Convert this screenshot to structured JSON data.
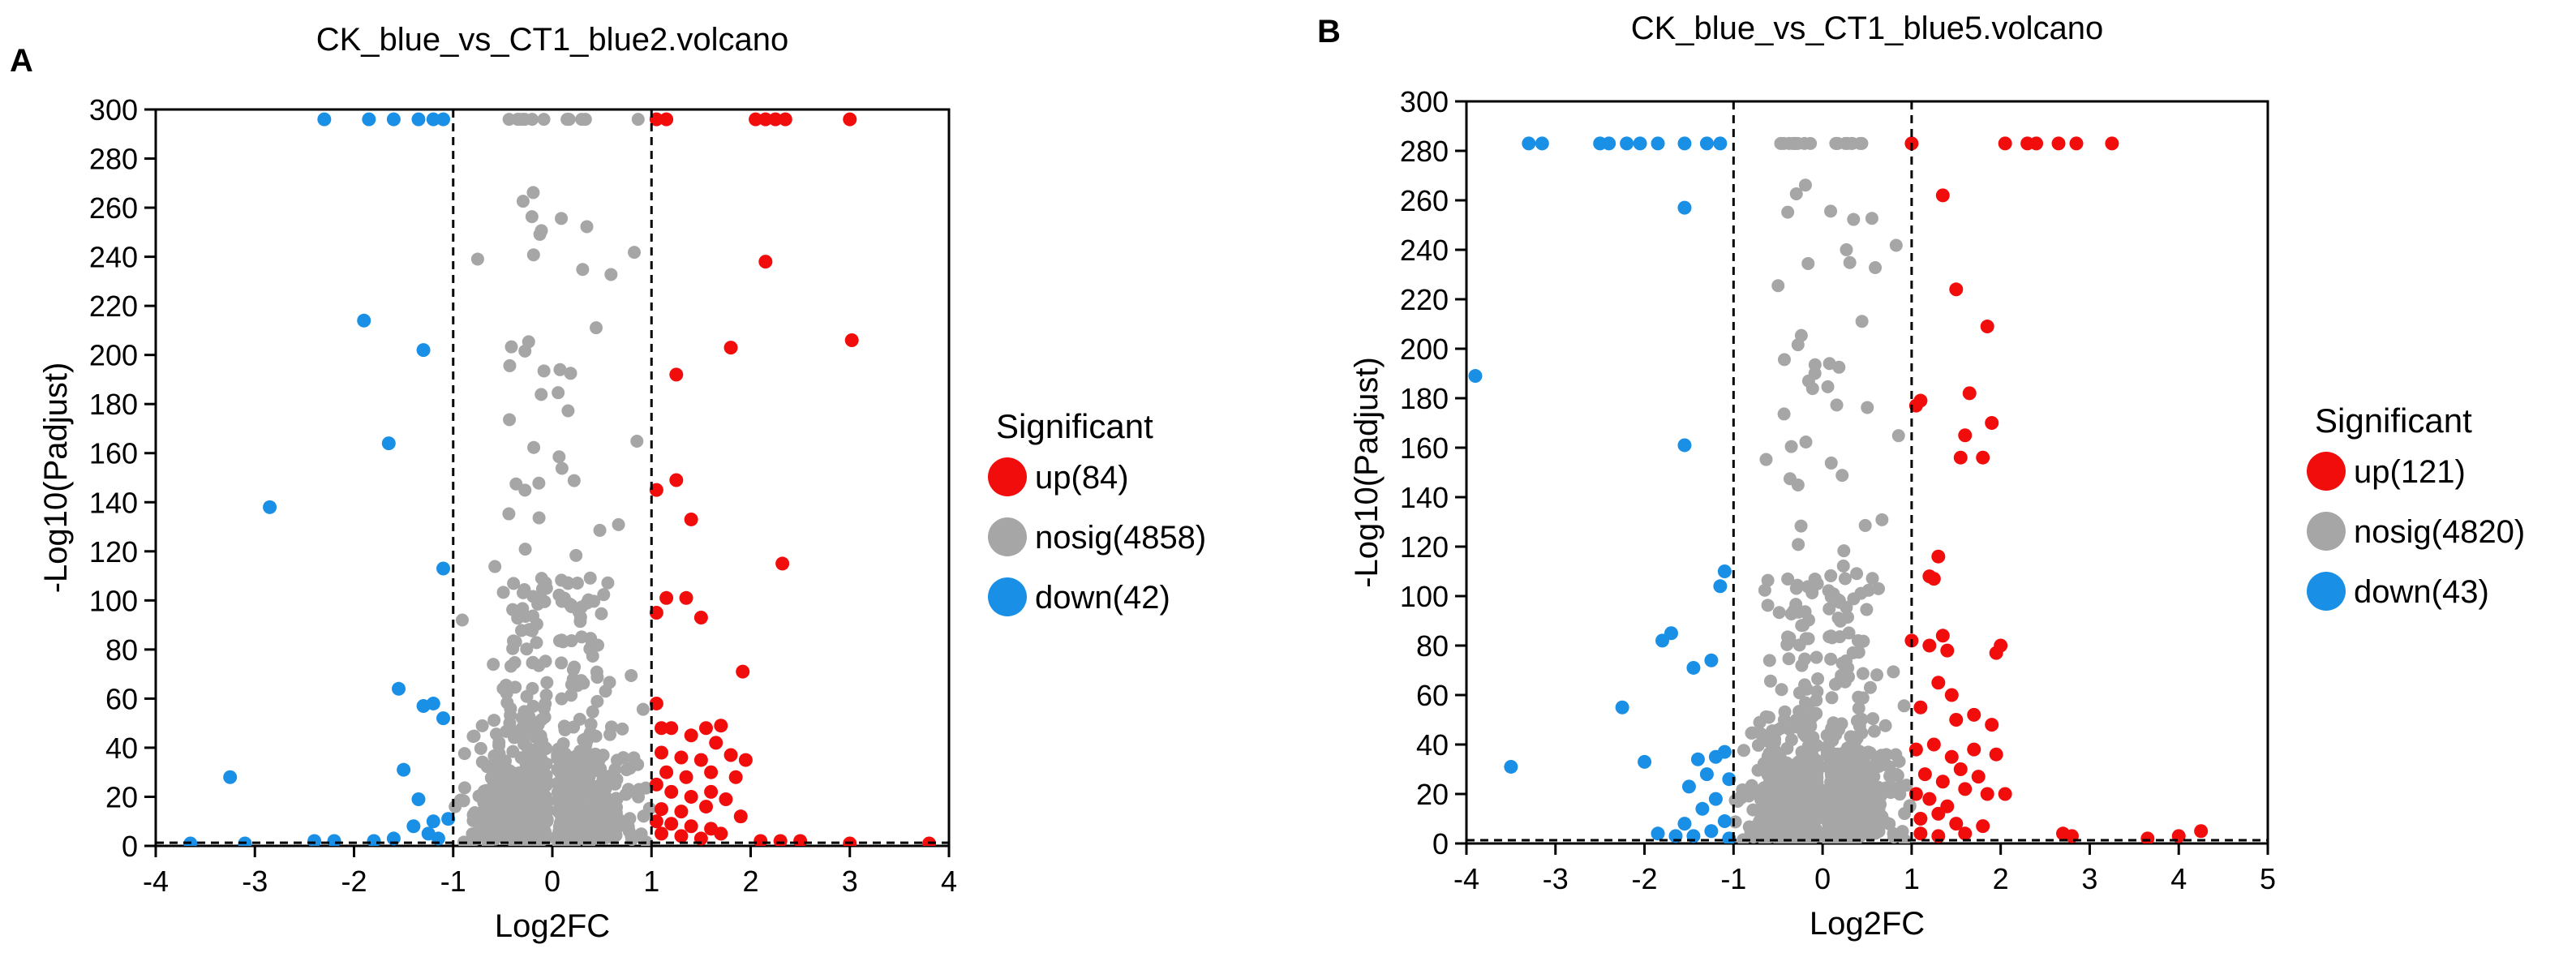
{
  "chart_data": [
    {
      "panel": "A",
      "type": "scatter",
      "title": "CK_blue_vs_CT1_blue2.volcano",
      "xlabel": "Log2FC",
      "ylabel": "-Log10(Padjust)",
      "xlim": [
        -4,
        4
      ],
      "ylim": [
        0,
        300
      ],
      "xticks": [
        "-4",
        "-3",
        "-2",
        "-1",
        "0",
        "1",
        "2",
        "3",
        "4"
      ],
      "yticks": [
        "0",
        "20",
        "40",
        "60",
        "80",
        "100",
        "120",
        "140",
        "160",
        "180",
        "200",
        "220",
        "240",
        "260",
        "280",
        "300"
      ],
      "thresholds": {
        "log2fc": [
          -1,
          1
        ],
        "neglog10p": 1.3
      },
      "legend": {
        "title": "Significant",
        "entries": [
          {
            "label": "up(84)",
            "color": "#f20d0d"
          },
          {
            "label": "nosig(4858)",
            "color": "#a6a6a6"
          },
          {
            "label": "down(42)",
            "color": "#1a8fe6"
          }
        ]
      },
      "series": [
        {
          "name": "up",
          "color": "#f20d0d",
          "points": [
            [
              1.05,
              296
            ],
            [
              1.15,
              296
            ],
            [
              2.05,
              296
            ],
            [
              2.15,
              296
            ],
            [
              2.25,
              296
            ],
            [
              2.35,
              296
            ],
            [
              3.0,
              296
            ],
            [
              2.15,
              238
            ],
            [
              3.02,
              206
            ],
            [
              1.8,
              203
            ],
            [
              1.25,
              192
            ],
            [
              2.32,
              115
            ],
            [
              1.25,
              149
            ],
            [
              1.05,
              145
            ],
            [
              1.4,
              133
            ],
            [
              1.05,
              95
            ],
            [
              1.15,
              101
            ],
            [
              1.35,
              101
            ],
            [
              1.5,
              93
            ],
            [
              1.92,
              71
            ],
            [
              1.05,
              58
            ],
            [
              1.1,
              48
            ],
            [
              1.2,
              48
            ],
            [
              1.4,
              45
            ],
            [
              1.55,
              48
            ],
            [
              1.7,
              49
            ],
            [
              1.65,
              42
            ],
            [
              1.1,
              38
            ],
            [
              1.3,
              36
            ],
            [
              1.5,
              35
            ],
            [
              1.8,
              37
            ],
            [
              1.95,
              35
            ],
            [
              1.15,
              30
            ],
            [
              1.35,
              28
            ],
            [
              1.6,
              30
            ],
            [
              1.85,
              28
            ],
            [
              1.05,
              25
            ],
            [
              1.2,
              22
            ],
            [
              1.4,
              20
            ],
            [
              1.6,
              22
            ],
            [
              1.75,
              19
            ],
            [
              1.1,
              15
            ],
            [
              1.3,
              14
            ],
            [
              1.55,
              16
            ],
            [
              1.05,
              10
            ],
            [
              1.2,
              9
            ],
            [
              1.4,
              8
            ],
            [
              1.6,
              7
            ],
            [
              1.9,
              12
            ],
            [
              1.1,
              5
            ],
            [
              1.3,
              4
            ],
            [
              1.5,
              3
            ],
            [
              1.7,
              5
            ],
            [
              2.1,
              2
            ],
            [
              2.3,
              2
            ],
            [
              2.5,
              2
            ],
            [
              3.0,
              1
            ],
            [
              3.8,
              1
            ]
          ]
        },
        {
          "name": "down",
          "color": "#1a8fe6",
          "points": [
            [
              -2.3,
              296
            ],
            [
              -1.85,
              296
            ],
            [
              -1.6,
              296
            ],
            [
              -1.35,
              296
            ],
            [
              -1.2,
              296
            ],
            [
              -1.1,
              296
            ],
            [
              -1.9,
              214
            ],
            [
              -1.3,
              202
            ],
            [
              -1.65,
              164
            ],
            [
              -2.85,
              138
            ],
            [
              -1.1,
              113
            ],
            [
              -1.55,
              64
            ],
            [
              -1.3,
              57
            ],
            [
              -1.2,
              58
            ],
            [
              -1.5,
              31
            ],
            [
              -1.1,
              52
            ],
            [
              -3.25,
              28
            ],
            [
              -1.35,
              19
            ],
            [
              -1.2,
              10
            ],
            [
              -1.05,
              11
            ],
            [
              -1.4,
              8
            ],
            [
              -1.25,
              5
            ],
            [
              -1.6,
              3
            ],
            [
              -1.8,
              2
            ],
            [
              -2.2,
              2
            ],
            [
              -2.4,
              2
            ],
            [
              -3.1,
              1
            ],
            [
              -3.65,
              1
            ],
            [
              -1.15,
              3
            ]
          ]
        }
      ]
    },
    {
      "panel": "B",
      "type": "scatter",
      "title": "CK_blue_vs_CT1_blue5.volcano",
      "xlabel": "Log2FC",
      "ylabel": "-Log10(Padjust)",
      "xlim": [
        -4,
        5
      ],
      "ylim": [
        0,
        300
      ],
      "xticks": [
        "-4",
        "-3",
        "-2",
        "-1",
        "0",
        "1",
        "2",
        "3",
        "4",
        "5"
      ],
      "yticks": [
        "0",
        "20",
        "40",
        "60",
        "80",
        "100",
        "120",
        "140",
        "160",
        "180",
        "200",
        "220",
        "240",
        "260",
        "280",
        "300"
      ],
      "thresholds": {
        "log2fc": [
          -1,
          1
        ],
        "neglog10p": 1.3
      },
      "legend": {
        "title": "Significant",
        "entries": [
          {
            "label": "up(121)",
            "color": "#f20d0d"
          },
          {
            "label": "nosig(4820)",
            "color": "#a6a6a6"
          },
          {
            "label": "down(43)",
            "color": "#1a8fe6"
          }
        ]
      },
      "series": [
        {
          "name": "up",
          "color": "#f20d0d",
          "points": [
            [
              1.0,
              283
            ],
            [
              2.05,
              283
            ],
            [
              2.3,
              283
            ],
            [
              2.4,
              283
            ],
            [
              2.65,
              283
            ],
            [
              2.85,
              283
            ],
            [
              3.25,
              283
            ],
            [
              1.35,
              262
            ],
            [
              1.5,
              224
            ],
            [
              1.85,
              209
            ],
            [
              1.65,
              182
            ],
            [
              1.05,
              177
            ],
            [
              1.1,
              179
            ],
            [
              1.9,
              170
            ],
            [
              1.6,
              165
            ],
            [
              1.55,
              156
            ],
            [
              1.8,
              156
            ],
            [
              1.3,
              116
            ],
            [
              1.25,
              107
            ],
            [
              1.2,
              108
            ],
            [
              1.0,
              82
            ],
            [
              1.2,
              80
            ],
            [
              1.35,
              84
            ],
            [
              1.4,
              78
            ],
            [
              2.0,
              80
            ],
            [
              1.95,
              77
            ],
            [
              1.3,
              65
            ],
            [
              1.45,
              60
            ],
            [
              1.1,
              55
            ],
            [
              1.5,
              50
            ],
            [
              1.7,
              52
            ],
            [
              1.9,
              48
            ],
            [
              1.05,
              38
            ],
            [
              1.25,
              40
            ],
            [
              1.45,
              35
            ],
            [
              1.7,
              38
            ],
            [
              1.95,
              36
            ],
            [
              1.15,
              28
            ],
            [
              1.35,
              25
            ],
            [
              1.55,
              30
            ],
            [
              1.75,
              27
            ],
            [
              1.05,
              20
            ],
            [
              1.2,
              18
            ],
            [
              1.4,
              15
            ],
            [
              1.6,
              22
            ],
            [
              1.85,
              20
            ],
            [
              2.05,
              20
            ],
            [
              1.1,
              10
            ],
            [
              1.3,
              12
            ],
            [
              1.5,
              8
            ],
            [
              1.8,
              7
            ],
            [
              1.1,
              4
            ],
            [
              1.3,
              3
            ],
            [
              1.6,
              4
            ],
            [
              2.7,
              4
            ],
            [
              2.8,
              3
            ],
            [
              3.65,
              2
            ],
            [
              4.0,
              3
            ],
            [
              4.25,
              5
            ]
          ]
        },
        {
          "name": "down",
          "color": "#1a8fe6",
          "points": [
            [
              -3.3,
              283
            ],
            [
              -3.15,
              283
            ],
            [
              -2.5,
              283
            ],
            [
              -2.4,
              283
            ],
            [
              -2.2,
              283
            ],
            [
              -2.05,
              283
            ],
            [
              -1.85,
              283
            ],
            [
              -1.55,
              283
            ],
            [
              -1.3,
              283
            ],
            [
              -1.15,
              283
            ],
            [
              -1.55,
              257
            ],
            [
              -3.9,
              189
            ],
            [
              -1.55,
              161
            ],
            [
              -1.1,
              110
            ],
            [
              -1.15,
              104
            ],
            [
              -1.7,
              85
            ],
            [
              -1.8,
              82
            ],
            [
              -1.25,
              74
            ],
            [
              -1.45,
              71
            ],
            [
              -2.25,
              55
            ],
            [
              -1.1,
              37
            ],
            [
              -1.2,
              35
            ],
            [
              -1.4,
              34
            ],
            [
              -2.0,
              33
            ],
            [
              -3.5,
              31
            ],
            [
              -1.3,
              28
            ],
            [
              -1.05,
              26
            ],
            [
              -1.5,
              23
            ],
            [
              -1.2,
              18
            ],
            [
              -1.35,
              14
            ],
            [
              -1.1,
              9
            ],
            [
              -1.55,
              8
            ],
            [
              -1.25,
              5
            ],
            [
              -1.45,
              3
            ],
            [
              -1.65,
              3
            ],
            [
              -1.85,
              4
            ],
            [
              -1.05,
              2
            ]
          ]
        }
      ]
    }
  ]
}
